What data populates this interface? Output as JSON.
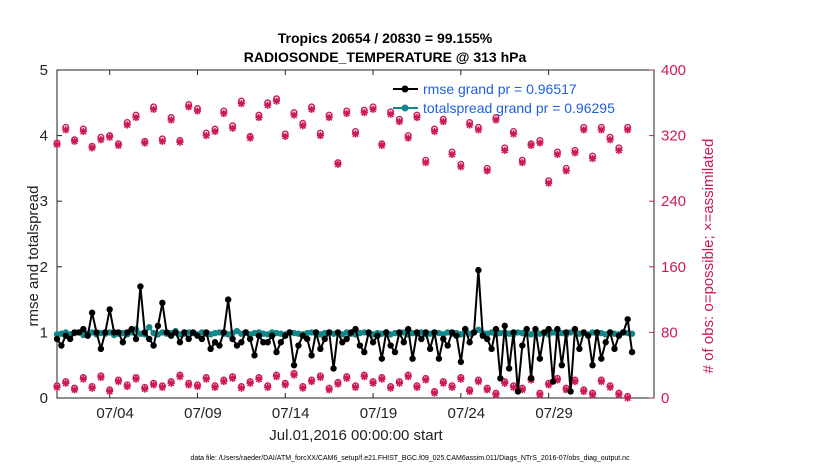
{
  "chart_data": {
    "type": "line",
    "title": "Tropics 20654 / 20830 = 99.155%",
    "subtitle": "RADIOSONDE_TEMPERATURE @ 313 hPa",
    "xlabel": "Jul.01,2016 00:00:00 start",
    "ylabel_left": "rmse and totalspread",
    "ylabel_right": "# of obs: o=possible; ×=assimilated",
    "footnote": "data file: /Users/raeder/DAI/ATM_forcXX/CAM6_setup/f.e21.FHIST_BGC.f09_025.CAM6assim.011/Diags_NTrS_2016-07/obs_diag_output.nc",
    "x_day_range": [
      1,
      35
    ],
    "ylim_left": [
      0,
      5
    ],
    "ylim_right": [
      0,
      400
    ],
    "left_ticks": [
      "0",
      "1",
      "2",
      "3",
      "4",
      "5"
    ],
    "right_ticks": [
      "0",
      "80",
      "160",
      "240",
      "320",
      "400"
    ],
    "x_ticks": [
      {
        "day": 4,
        "label": "07/04"
      },
      {
        "day": 9,
        "label": "07/09"
      },
      {
        "day": 14,
        "label": "07/14"
      },
      {
        "day": 19,
        "label": "07/19"
      },
      {
        "day": 24,
        "label": "07/24"
      },
      {
        "day": 29,
        "label": "07/29"
      }
    ],
    "legend": [
      {
        "label": "rmse grand pr = 0.96517",
        "color": "#000000"
      },
      {
        "label": "totalspread grand pr = 0.96295",
        "color": "#12878a"
      }
    ],
    "colors": {
      "rmse": "#000000",
      "totalspread": "#12878a",
      "obs": "#cc1a55"
    },
    "x_days_high": [
      1.0,
      1.5,
      2.0,
      2.5,
      3.0,
      3.5,
      4.0,
      4.5,
      5.0,
      5.5,
      6.0,
      6.5,
      7.0,
      7.5,
      8.0,
      8.5,
      9.0,
      9.5,
      10.0,
      10.5,
      11.0,
      11.5,
      12.0,
      12.5,
      13.0,
      13.5,
      14.0,
      14.5,
      15.0,
      15.5,
      16.0,
      16.5,
      17.0,
      17.5,
      18.0,
      18.5,
      19.0,
      19.5,
      20.0,
      20.5,
      21.0,
      21.5,
      22.0,
      22.5,
      23.0,
      23.5,
      24.0,
      24.5,
      25.0,
      25.5,
      26.0,
      26.5,
      27.0,
      27.5,
      28.0,
      28.5,
      29.0,
      29.5,
      30.0,
      30.5,
      31.0,
      31.5,
      32.0,
      32.5,
      33.0,
      33.5
    ],
    "possible_high": [
      311,
      330,
      315,
      328,
      307,
      318,
      320,
      310,
      336,
      345,
      313,
      355,
      316,
      342,
      314,
      358,
      353,
      323,
      328,
      350,
      332,
      362,
      319,
      345,
      360,
      365,
      322,
      348,
      335,
      355,
      323,
      345,
      287,
      350,
      325,
      351,
      355,
      310,
      349,
      340,
      320,
      345,
      290,
      328,
      340,
      300,
      285,
      336,
      330,
      280,
      342,
      305,
      325,
      290,
      310,
      314,
      265,
      300,
      280,
      302,
      330,
      295,
      330,
      318,
      305,
      330
    ],
    "assimilated_high": [
      309,
      327,
      313,
      325,
      305,
      315,
      318,
      308,
      333,
      342,
      311,
      352,
      313,
      339,
      312,
      355,
      350,
      320,
      325,
      347,
      329,
      359,
      317,
      342,
      357,
      362,
      319,
      345,
      332,
      352,
      320,
      342,
      285,
      347,
      322,
      348,
      352,
      308,
      346,
      337,
      317,
      342,
      287,
      325,
      337,
      297,
      282,
      333,
      327,
      277,
      339,
      302,
      322,
      287,
      308,
      311,
      262,
      297,
      277,
      299,
      327,
      292,
      327,
      315,
      302,
      327
    ],
    "x_days_low": [
      1.0,
      1.5,
      2.0,
      2.5,
      3.0,
      3.5,
      4.0,
      4.5,
      5.0,
      5.5,
      6.0,
      6.5,
      7.0,
      7.5,
      8.0,
      8.5,
      9.0,
      9.5,
      10.0,
      10.5,
      11.0,
      11.5,
      12.0,
      12.5,
      13.0,
      13.5,
      14.0,
      14.5,
      15.0,
      15.5,
      16.0,
      16.5,
      17.0,
      17.5,
      18.0,
      18.5,
      19.0,
      19.5,
      20.0,
      20.5,
      21.0,
      21.5,
      22.0,
      22.5,
      23.0,
      23.5,
      24.0,
      24.5,
      25.0,
      25.5,
      26.0,
      26.5,
      27.0,
      27.5,
      28.0,
      28.5,
      29.0,
      29.5,
      30.0,
      30.5,
      31.0,
      31.5,
      32.0,
      32.5,
      33.0,
      33.5
    ],
    "possible_low": [
      15,
      20,
      12,
      25,
      14,
      27,
      10,
      22,
      16,
      25,
      13,
      18,
      15,
      20,
      28,
      18,
      16,
      25,
      15,
      22,
      26,
      14,
      20,
      25,
      15,
      28,
      18,
      30,
      14,
      22,
      27,
      12,
      19,
      26,
      15,
      28,
      20,
      25,
      14,
      20,
      28,
      15,
      24,
      8,
      20,
      15,
      25,
      10,
      22,
      12,
      6,
      20,
      15,
      12,
      24,
      6,
      18,
      24,
      12,
      22,
      10,
      6,
      22,
      15,
      6,
      2
    ],
    "assimilated_low": [
      13,
      18,
      10,
      23,
      12,
      25,
      8,
      20,
      14,
      23,
      11,
      16,
      13,
      18,
      26,
      16,
      14,
      23,
      13,
      20,
      24,
      12,
      18,
      23,
      13,
      26,
      16,
      28,
      12,
      20,
      25,
      10,
      17,
      24,
      13,
      26,
      18,
      23,
      12,
      18,
      26,
      13,
      22,
      6,
      18,
      13,
      23,
      8,
      20,
      10,
      4,
      18,
      13,
      10,
      22,
      4,
      16,
      22,
      10,
      20,
      8,
      4,
      20,
      13,
      4,
      0
    ],
    "x_days_lines": [
      1.0,
      1.25,
      1.5,
      1.75,
      2.0,
      2.25,
      2.5,
      2.75,
      3.0,
      3.25,
      3.5,
      3.75,
      4.0,
      4.25,
      4.5,
      4.75,
      5.0,
      5.25,
      5.5,
      5.75,
      6.0,
      6.25,
      6.5,
      6.75,
      7.0,
      7.25,
      7.5,
      7.75,
      8.0,
      8.25,
      8.5,
      8.75,
      9.0,
      9.25,
      9.5,
      9.75,
      10.0,
      10.25,
      10.5,
      10.75,
      11.0,
      11.25,
      11.5,
      11.75,
      12.0,
      12.25,
      12.5,
      12.75,
      13.0,
      13.25,
      13.5,
      13.75,
      14.0,
      14.25,
      14.5,
      14.75,
      15.0,
      15.25,
      15.5,
      15.75,
      16.0,
      16.25,
      16.5,
      16.75,
      17.0,
      17.25,
      17.5,
      17.75,
      18.0,
      18.25,
      18.5,
      18.75,
      19.0,
      19.25,
      19.5,
      19.75,
      20.0,
      20.25,
      20.5,
      20.75,
      21.0,
      21.25,
      21.5,
      21.75,
      22.0,
      22.25,
      22.5,
      22.75,
      23.0,
      23.25,
      23.5,
      23.75,
      24.0,
      24.25,
      24.5,
      24.75,
      25.0,
      25.25,
      25.5,
      25.75,
      26.0,
      26.25,
      26.5,
      26.75,
      27.0,
      27.25,
      27.5,
      27.75,
      28.0,
      28.25,
      28.5,
      28.75,
      29.0,
      29.25,
      29.5,
      29.75,
      30.0,
      30.25,
      30.5,
      30.75,
      31.0,
      31.25,
      31.5,
      31.75,
      32.0,
      32.25,
      32.5,
      32.75,
      33.0,
      33.25,
      33.5,
      33.75
    ],
    "rmse": [
      0.9,
      0.8,
      0.95,
      0.9,
      1.0,
      1.0,
      1.05,
      0.95,
      1.3,
      1.0,
      0.75,
      1.0,
      1.35,
      1.0,
      1.0,
      0.85,
      1.0,
      1.05,
      0.9,
      1.7,
      1.0,
      0.9,
      0.8,
      1.1,
      1.45,
      1.0,
      0.95,
      1.0,
      0.85,
      1.0,
      0.9,
      1.0,
      0.95,
      0.9,
      1.0,
      0.75,
      0.85,
      0.8,
      1.0,
      1.5,
      0.9,
      0.8,
      0.85,
      1.0,
      0.9,
      0.65,
      0.95,
      0.85,
      0.85,
      0.95,
      0.7,
      0.85,
      0.95,
      1.0,
      0.5,
      0.8,
      0.95,
      0.9,
      0.65,
      1.0,
      0.75,
      0.9,
      1.0,
      0.45,
      1.0,
      0.85,
      0.9,
      1.0,
      1.05,
      0.8,
      0.7,
      1.0,
      0.85,
      0.95,
      0.6,
      1.0,
      0.8,
      0.7,
      1.0,
      0.85,
      1.05,
      0.6,
      1.0,
      0.9,
      1.0,
      0.75,
      1.0,
      0.6,
      0.9,
      0.8,
      1.0,
      0.95,
      0.55,
      1.05,
      0.85,
      1.0,
      1.95,
      0.95,
      0.9,
      0.75,
      1.05,
      0.3,
      1.1,
      0.45,
      1.0,
      0.1,
      0.8,
      1.05,
      0.3,
      1.05,
      0.6,
      1.0,
      1.05,
      0.25,
      1.05,
      0.5,
      1.0,
      0.1,
      1.05,
      0.75,
      1.0,
      0.95,
      0.5,
      1.0,
      0.6,
      0.85,
      1.0,
      0.75,
      0.95,
      1.0,
      1.2,
      0.7,
      1.05,
      0.9,
      0.65,
      1.0,
      0.55,
      0.35
    ],
    "totalspread": [
      0.97,
      0.98,
      1.0,
      0.97,
      0.99,
      1.0,
      0.96,
      0.98,
      1.0,
      0.97,
      0.99,
      0.98,
      1.0,
      0.96,
      0.98,
      0.99,
      0.97,
      1.0,
      1.05,
      0.98,
      0.97,
      1.08,
      0.99,
      0.97,
      1.0,
      0.98,
      0.99,
      1.02,
      0.97,
      0.98,
      1.0,
      0.99,
      0.97,
      1.0,
      0.98,
      0.97,
      0.99,
      1.0,
      0.98,
      0.97,
      0.99,
      1.02,
      0.98,
      1.0,
      0.97,
      0.99,
      1.0,
      0.98,
      0.97,
      1.0,
      0.99,
      0.98,
      0.97,
      1.0,
      0.99,
      0.98,
      0.97,
      0.99,
      1.0,
      0.98,
      0.97,
      0.99,
      1.0,
      0.98,
      0.99,
      0.97,
      1.0,
      0.98,
      0.97,
      0.99,
      1.0,
      0.98,
      0.97,
      0.99,
      0.98,
      1.0,
      0.97,
      0.99,
      0.98,
      1.0,
      0.97,
      0.99,
      0.98,
      1.0,
      0.97,
      0.98,
      1.0,
      0.99,
      0.97,
      1.0,
      0.98,
      0.99,
      0.97,
      1.05,
      0.98,
      1.0,
      1.04,
      0.99,
      0.98,
      1.0,
      0.97,
      0.99,
      1.0,
      0.98,
      0.97,
      1.0,
      0.99,
      0.98,
      0.97,
      1.0,
      0.98,
      0.99,
      0.97,
      1.0,
      0.98,
      0.99,
      0.97,
      1.0,
      1.03,
      0.98,
      0.99,
      0.97,
      1.0,
      0.98,
      0.99,
      0.97,
      1.0,
      0.98,
      0.97,
      1.0,
      0.99,
      0.98,
      1.35,
      0.97,
      0.99,
      1.0,
      0.98,
      1.25
    ]
  }
}
